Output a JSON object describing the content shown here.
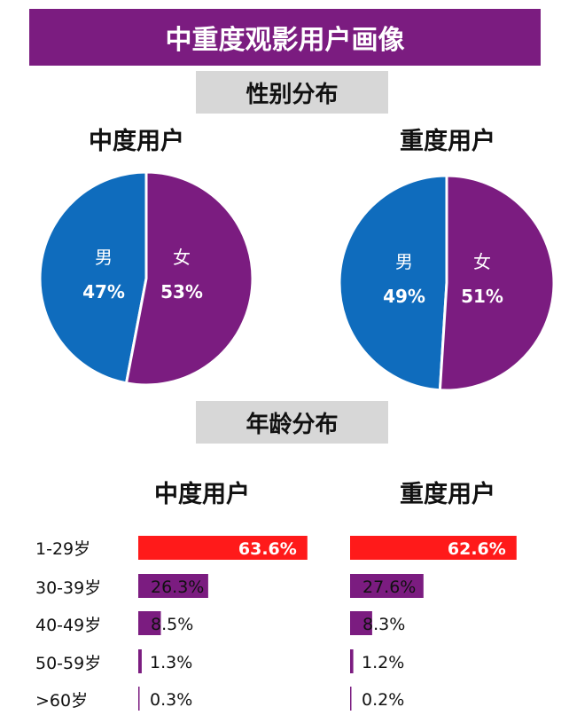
{
  "title": "中重度观影用户画像",
  "sections": {
    "gender": "性别分布",
    "age": "年龄分布"
  },
  "groups": [
    "中度用户",
    "重度用户"
  ],
  "colors": {
    "title_bg": "#7b1c80",
    "male": "#0f6cbd",
    "female": "#7b1c80",
    "top_bar": "#ff1a1a",
    "bar": "#7b1c80"
  },
  "chart_data": [
    {
      "type": "pie",
      "title": "中度用户",
      "slices": [
        {
          "label": "男",
          "value": 47,
          "text": "47%"
        },
        {
          "label": "女",
          "value": 53,
          "text": "53%"
        }
      ]
    },
    {
      "type": "pie",
      "title": "重度用户",
      "slices": [
        {
          "label": "男",
          "value": 49,
          "text": "49%"
        },
        {
          "label": "女",
          "value": 51,
          "text": "51%"
        }
      ]
    },
    {
      "type": "bar",
      "orientation": "horizontal",
      "title": "中度用户",
      "categories": [
        "1-29岁",
        "30-39岁",
        "40-49岁",
        "50-59岁",
        ">60岁"
      ],
      "values": [
        63.6,
        26.3,
        8.5,
        1.3,
        0.3
      ],
      "labels": [
        "63.6%",
        "26.3%",
        "8.5%",
        "1.3%",
        "0.3%"
      ]
    },
    {
      "type": "bar",
      "orientation": "horizontal",
      "title": "重度用户",
      "categories": [
        "1-29岁",
        "30-39岁",
        "40-49岁",
        "50-59岁",
        ">60岁"
      ],
      "values": [
        62.6,
        27.6,
        8.3,
        1.2,
        0.2
      ],
      "labels": [
        "62.6%",
        "27.6%",
        "8.3%",
        "1.2%",
        "0.2%"
      ]
    }
  ]
}
